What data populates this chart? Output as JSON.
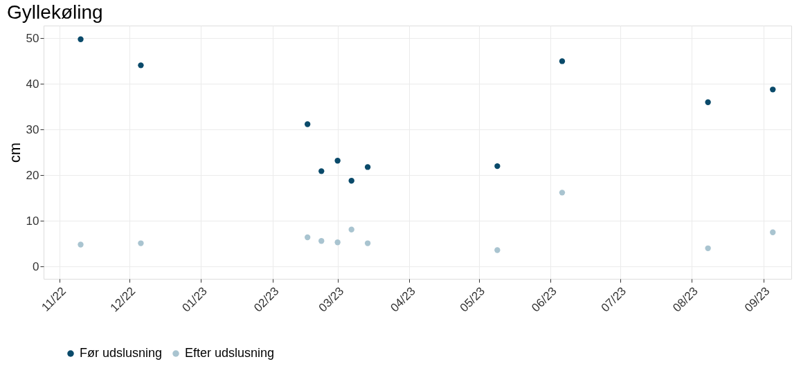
{
  "chart_data": {
    "type": "scatter",
    "title": "Gyllekøling",
    "ylabel": "cm",
    "x": [
      "2022-11-10",
      "2022-12-06",
      "2023-02-16",
      "2023-02-22",
      "2023-03-01",
      "2023-03-07",
      "2023-03-14",
      "2023-05-09",
      "2023-06-06",
      "2023-08-08",
      "2023-09-05"
    ],
    "series": [
      {
        "name": "Før udslusning",
        "color": "#0a4a6a",
        "values": [
          49.8,
          44.1,
          31.2,
          20.9,
          23.2,
          18.8,
          21.8,
          22.0,
          45.0,
          36.0,
          38.8
        ]
      },
      {
        "name": "Efter udslusning",
        "color": "#a9c4d0",
        "values": [
          4.8,
          5.1,
          6.4,
          5.6,
          5.3,
          8.1,
          5.1,
          3.6,
          16.2,
          4.0,
          7.5
        ]
      }
    ],
    "xlim": [
      "2022-10-25",
      "2023-09-13"
    ],
    "xticks": [
      {
        "value": "2022-11-01",
        "label": "11/22"
      },
      {
        "value": "2022-12-01",
        "label": "12/22"
      },
      {
        "value": "2023-01-01",
        "label": "01/23"
      },
      {
        "value": "2023-02-01",
        "label": "02/23"
      },
      {
        "value": "2023-03-01",
        "label": "03/23"
      },
      {
        "value": "2023-04-01",
        "label": "04/23"
      },
      {
        "value": "2023-05-01",
        "label": "05/23"
      },
      {
        "value": "2023-06-01",
        "label": "06/23"
      },
      {
        "value": "2023-07-01",
        "label": "07/23"
      },
      {
        "value": "2023-08-01",
        "label": "08/23"
      },
      {
        "value": "2023-09-01",
        "label": "09/23"
      }
    ],
    "ylim": [
      -2.7,
      52.8
    ],
    "yticks": [
      0,
      10,
      20,
      30,
      40,
      50
    ],
    "grid": true,
    "legend": "bottom",
    "marker": "circle"
  }
}
